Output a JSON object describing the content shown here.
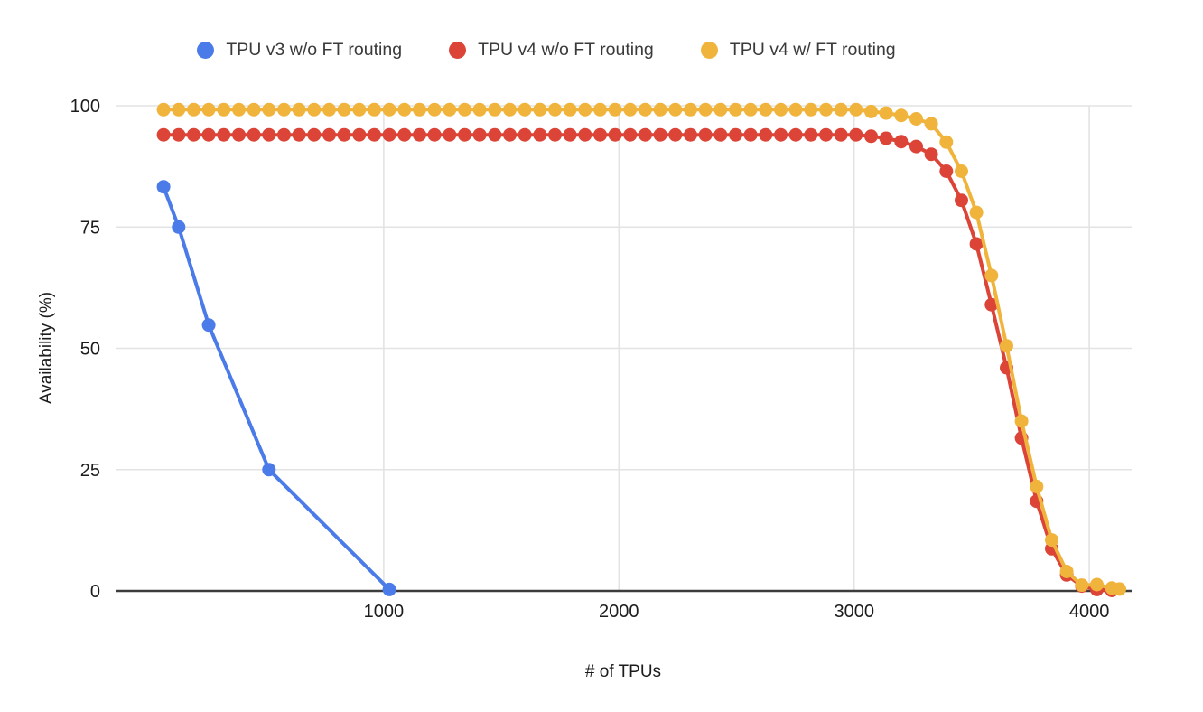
{
  "chart_data": {
    "type": "line",
    "title": "",
    "xlabel": "# of TPUs",
    "ylabel": "Availability (%)",
    "xlim": [
      -140,
      4180
    ],
    "ylim": [
      0,
      100
    ],
    "x_ticks": [
      1000,
      2000,
      3000,
      4000
    ],
    "y_ticks": [
      0,
      25,
      50,
      75,
      100
    ],
    "grid": true,
    "legend_position": "top",
    "series": [
      {
        "name": "TPU v4 w/o FT routing",
        "color": "#db4437",
        "x": [
          64,
          128,
          192,
          256,
          320,
          384,
          448,
          512,
          576,
          640,
          704,
          768,
          832,
          896,
          960,
          1024,
          1088,
          1152,
          1216,
          1280,
          1344,
          1408,
          1472,
          1536,
          1600,
          1664,
          1728,
          1792,
          1856,
          1920,
          1984,
          2048,
          2112,
          2176,
          2240,
          2304,
          2368,
          2432,
          2496,
          2560,
          2624,
          2688,
          2752,
          2816,
          2880,
          2944,
          3008,
          3072,
          3136,
          3200,
          3264,
          3328,
          3392,
          3456,
          3520,
          3584,
          3648,
          3712,
          3776,
          3840,
          3904,
          3968,
          4032,
          4096
        ],
        "y": [
          94,
          94,
          94,
          94,
          94,
          94,
          94,
          94,
          94,
          94,
          94,
          94,
          94,
          94,
          94,
          94,
          94,
          94,
          94,
          94,
          94,
          94,
          94,
          94,
          94,
          94,
          94,
          94,
          94,
          94,
          94,
          94,
          94,
          94,
          94,
          94,
          94,
          94,
          94,
          94,
          94,
          94,
          94,
          94,
          94,
          94,
          94,
          93.7,
          93.3,
          92.6,
          91.6,
          90,
          86.5,
          80.5,
          71.5,
          59,
          46,
          31.5,
          18.5,
          8.7,
          3.3,
          1,
          0.3,
          0.1
        ]
      },
      {
        "name": "TPU v4 w/ FT routing",
        "color": "#f0b43c",
        "x": [
          64,
          128,
          192,
          256,
          320,
          384,
          448,
          512,
          576,
          640,
          704,
          768,
          832,
          896,
          960,
          1024,
          1088,
          1152,
          1216,
          1280,
          1344,
          1408,
          1472,
          1536,
          1600,
          1664,
          1728,
          1792,
          1856,
          1920,
          1984,
          2048,
          2112,
          2176,
          2240,
          2304,
          2368,
          2432,
          2496,
          2560,
          2624,
          2688,
          2752,
          2816,
          2880,
          2944,
          3008,
          3072,
          3136,
          3200,
          3264,
          3328,
          3392,
          3456,
          3520,
          3584,
          3648,
          3712,
          3776,
          3840,
          3904,
          3968,
          4032,
          4096,
          4128
        ],
        "y": [
          99.2,
          99.2,
          99.2,
          99.2,
          99.2,
          99.2,
          99.2,
          99.2,
          99.2,
          99.2,
          99.2,
          99.2,
          99.2,
          99.2,
          99.2,
          99.2,
          99.2,
          99.2,
          99.2,
          99.2,
          99.2,
          99.2,
          99.2,
          99.2,
          99.2,
          99.2,
          99.2,
          99.2,
          99.2,
          99.2,
          99.2,
          99.2,
          99.2,
          99.2,
          99.2,
          99.2,
          99.2,
          99.2,
          99.2,
          99.2,
          99.2,
          99.2,
          99.2,
          99.2,
          99.2,
          99.2,
          99.2,
          98.8,
          98.5,
          98,
          97.3,
          96.3,
          92.5,
          86.5,
          78,
          65,
          50.5,
          35,
          21.5,
          10.5,
          4,
          1.2,
          1.3,
          0.6,
          0.4
        ]
      },
      {
        "name": "TPU v3 w/o FT routing",
        "color": "#4a7be8",
        "x": [
          64,
          128,
          256,
          512,
          1024
        ],
        "y": [
          83.3,
          75,
          54.8,
          25,
          0.3
        ]
      }
    ],
    "legend_order": [
      "TPU v3 w/o FT routing",
      "TPU v4 w/o FT routing",
      "TPU v4 w/ FT routing"
    ]
  },
  "colors": {
    "gridline": "#e3e3e3",
    "baseline": "#3d3d3d",
    "tick_text": "#1c1c1c"
  }
}
